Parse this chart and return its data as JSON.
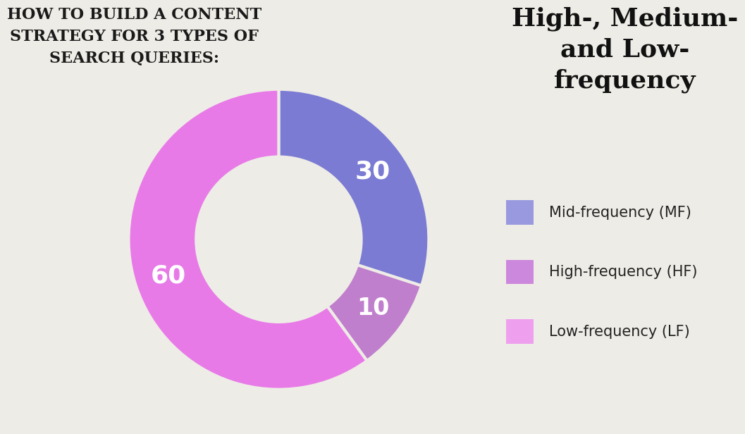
{
  "title_left": "HOW TO BUILD A CONTENT\nSTRATEGY FOR 3 TYPES OF\nSEARCH QUERIES:",
  "title_right": "High-, Medium-\nand Low-\nfrequency",
  "slices": [
    30,
    10,
    60
  ],
  "labels": [
    "30",
    "10",
    "60"
  ],
  "colors": [
    "#7B7BD4",
    "#C07FCC",
    "#E87AE8"
  ],
  "legend_labels": [
    "Mid-frequency (MF)",
    "High-frequency (HF)",
    "Low-frequency (LF)"
  ],
  "legend_colors": [
    "#9999E0",
    "#CC88DD",
    "#EEA0EE"
  ],
  "background_color": "#EEECE6",
  "startangle": 90,
  "donut_width": 0.45
}
